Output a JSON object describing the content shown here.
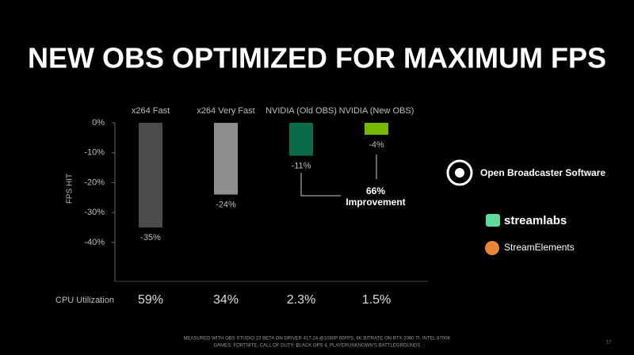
{
  "title": "NEW OBS OPTIMIZED FOR MAXIMUM FPS",
  "chart_data": {
    "type": "bar",
    "y_label": "FPS HIT",
    "categories": [
      "x264 Fast",
      "x264 Very Fast",
      "NVIDIA (Old OBS)",
      "NVIDIA (New OBS)"
    ],
    "values": [
      -35,
      -24,
      -11,
      -4
    ],
    "value_labels": [
      "-35%",
      "-24%",
      "-11%",
      "-4%"
    ],
    "colors": [
      "#4b4b4b",
      "#8e8e8e",
      "#0b6a4a",
      "#76b900"
    ],
    "ylim": [
      -53,
      0
    ],
    "yticks": [
      {
        "value": 0,
        "label": "0%"
      },
      {
        "value": -10,
        "label": "-10%"
      },
      {
        "value": -20,
        "label": "-20%"
      },
      {
        "value": -30,
        "label": "-30%"
      },
      {
        "value": -40,
        "label": "-40%"
      }
    ],
    "annotation": [
      "66%",
      "Improvement"
    ]
  },
  "cpu_utilization": {
    "label": "CPU Utilization",
    "values": [
      "59%",
      "34%",
      "2.3%",
      "1.5%"
    ]
  },
  "logos": [
    "Open Broadcaster Software",
    "streamlabs",
    "StreamElements"
  ],
  "footer": [
    "MEASURED WITH OBS STUDIO 23 BETA ON DRIVER 417.24 @1080P 60FPS, 6K BITRATE ON RTX 2080 TI, INTEL 8700K",
    "GAMES: FORTNITE, CALL OF DUTY: BLACK OPS 4, PLAYERUNKNOWN'S BATTLEGROUNDS"
  ],
  "page_number": "17"
}
